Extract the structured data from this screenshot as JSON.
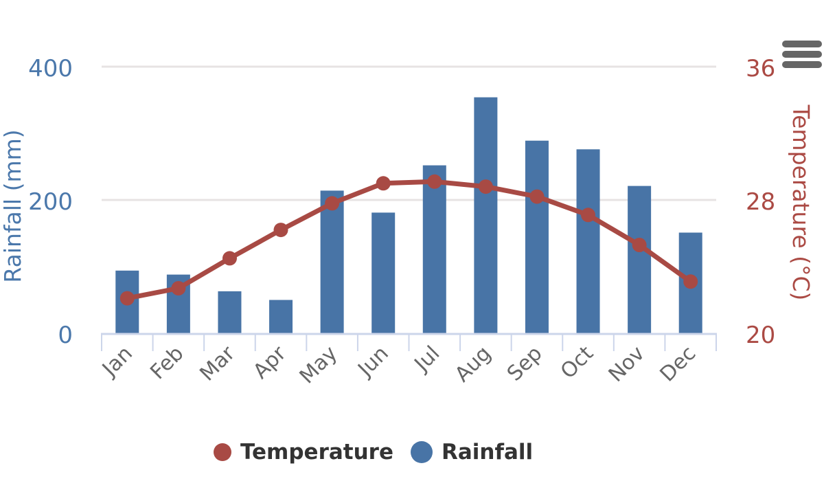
{
  "chart_data": {
    "type": "bar",
    "subtype": "column-and-line-dual-axis",
    "title": "",
    "categories": [
      "Jan",
      "Feb",
      "Mar",
      "Apr",
      "May",
      "Jun",
      "Jul",
      "Aug",
      "Sep",
      "Oct",
      "Nov",
      "Dec"
    ],
    "series": [
      {
        "name": "Temperature",
        "type": "line",
        "axis": "right",
        "unit": "°C",
        "color": "#A84A44",
        "values": [
          22.1,
          22.7,
          24.5,
          26.2,
          27.8,
          29.0,
          29.1,
          28.8,
          28.2,
          27.1,
          25.3,
          23.1
        ]
      },
      {
        "name": "Rainfall",
        "type": "column",
        "axis": "left",
        "unit": "mm",
        "color": "#4874A6",
        "values": [
          94,
          88,
          63,
          50,
          214,
          181,
          252,
          354,
          289,
          276,
          221,
          151
        ]
      }
    ],
    "y_axis_left": {
      "title": "Rainfall (mm)",
      "ticks": [
        0,
        200,
        400
      ],
      "range": [
        0,
        400
      ],
      "label_color": "#4B78AB"
    },
    "y_axis_right": {
      "title": "Temperature (°C)",
      "ticks": [
        20,
        28,
        36
      ],
      "range": [
        20,
        36
      ],
      "label_color": "#AB4A44"
    },
    "x_axis": {
      "label_rotation": -45,
      "label_color": "#666666",
      "line_color": "#CCD5EA"
    },
    "grid": {
      "on": true,
      "color": "#E7E3E3"
    },
    "legend": {
      "position": "bottom",
      "items": [
        "Temperature",
        "Rainfall"
      ]
    }
  },
  "toolbar": {
    "menu_icon": "hamburger-menu-icon"
  },
  "background_color": "#FFFFFF"
}
